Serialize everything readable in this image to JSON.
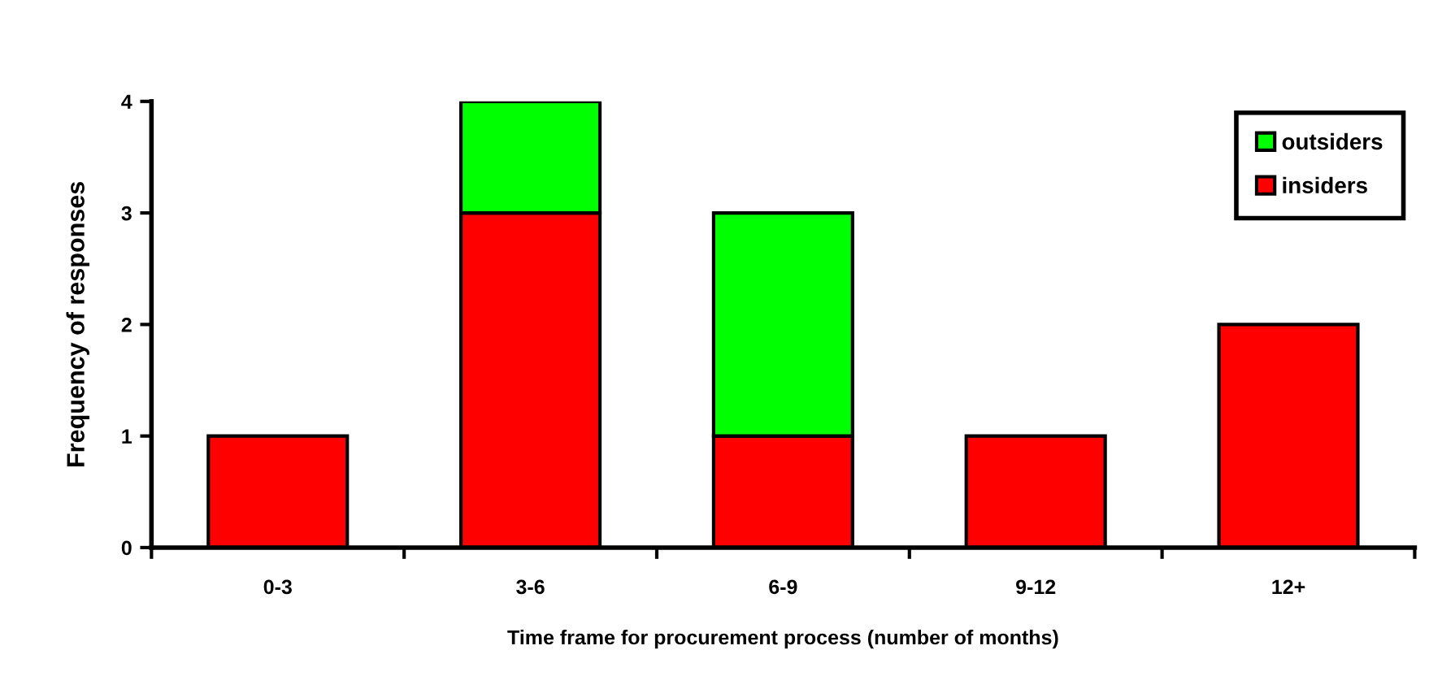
{
  "chart_data": {
    "type": "bar",
    "stacked": true,
    "xlabel": "Time frame for procurement process (number of months)",
    "ylabel": "Frequency of responses",
    "categories": [
      "0-3",
      "3-6",
      "6-9",
      "9-12",
      "12+"
    ],
    "series": [
      {
        "name": "insiders",
        "color": "#ff0000",
        "values": [
          1,
          3,
          1,
          1,
          2
        ]
      },
      {
        "name": "outsiders",
        "color": "#00ff00",
        "values": [
          null,
          1,
          2,
          null,
          null
        ]
      }
    ],
    "ylim": [
      0,
      4
    ],
    "yticks": [
      0,
      1,
      2,
      3,
      4
    ],
    "grid": false,
    "legend": "top right"
  }
}
